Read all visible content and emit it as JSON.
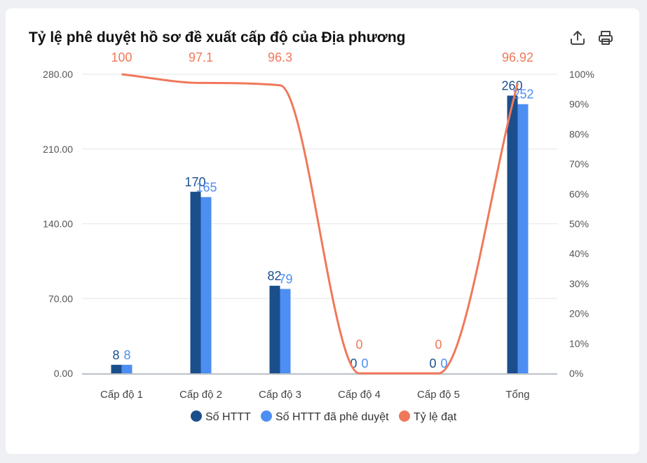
{
  "card": {
    "title": "Tỷ lệ phê duyệt hồ sơ đề xuất cấp độ của Địa phương"
  },
  "toolbar": {
    "export_icon": "upload-icon",
    "print_icon": "printer-icon"
  },
  "colors": {
    "so_httt": "#1b4f8c",
    "so_httt_duyet": "#4d8ef2",
    "ty_le": "#f0785a",
    "grid": "#e3e6ea",
    "axis_text": "#555555"
  },
  "chart_data": {
    "type": "bar",
    "title": "Tỷ lệ phê duyệt hồ sơ đề xuất cấp độ của Địa phương",
    "categories": [
      "Cấp độ 1",
      "Cấp độ 2",
      "Cấp độ 3",
      "Cấp độ 4",
      "Cấp độ 5",
      "Tổng"
    ],
    "series": [
      {
        "name": "Số HTTT",
        "type": "bar",
        "axis": "left",
        "values": [
          8,
          170,
          82,
          0,
          0,
          260
        ],
        "labels": [
          "8",
          "170",
          "82",
          "0",
          "0",
          "260"
        ]
      },
      {
        "name": "Số HTTT đã phê duyệt",
        "type": "bar",
        "axis": "left",
        "values": [
          8,
          165,
          79,
          0,
          0,
          252
        ],
        "labels": [
          "8",
          "165",
          "79",
          "0",
          "0",
          "252"
        ]
      },
      {
        "name": "Tỷ lệ đạt",
        "type": "line",
        "axis": "right",
        "values": [
          100,
          97.1,
          96.3,
          0,
          0,
          96.92
        ],
        "labels": [
          "100",
          "97.1",
          "96.3",
          "0",
          "0",
          "96.92"
        ]
      }
    ],
    "left_axis": {
      "ylim": [
        0,
        280
      ],
      "ticks": [
        "0.00",
        "70.00",
        "140.00",
        "210.00",
        "280.00"
      ]
    },
    "right_axis": {
      "ylim": [
        0,
        100
      ],
      "ticks": [
        "0%",
        "10%",
        "20%",
        "30%",
        "40%",
        "50%",
        "60%",
        "70%",
        "80%",
        "90%",
        "100%"
      ]
    },
    "grid": true,
    "legend": "bottom",
    "legend_items": [
      "Số HTTT",
      "Số HTTT đã phê duyệt",
      "Tỷ lệ đạt"
    ]
  }
}
